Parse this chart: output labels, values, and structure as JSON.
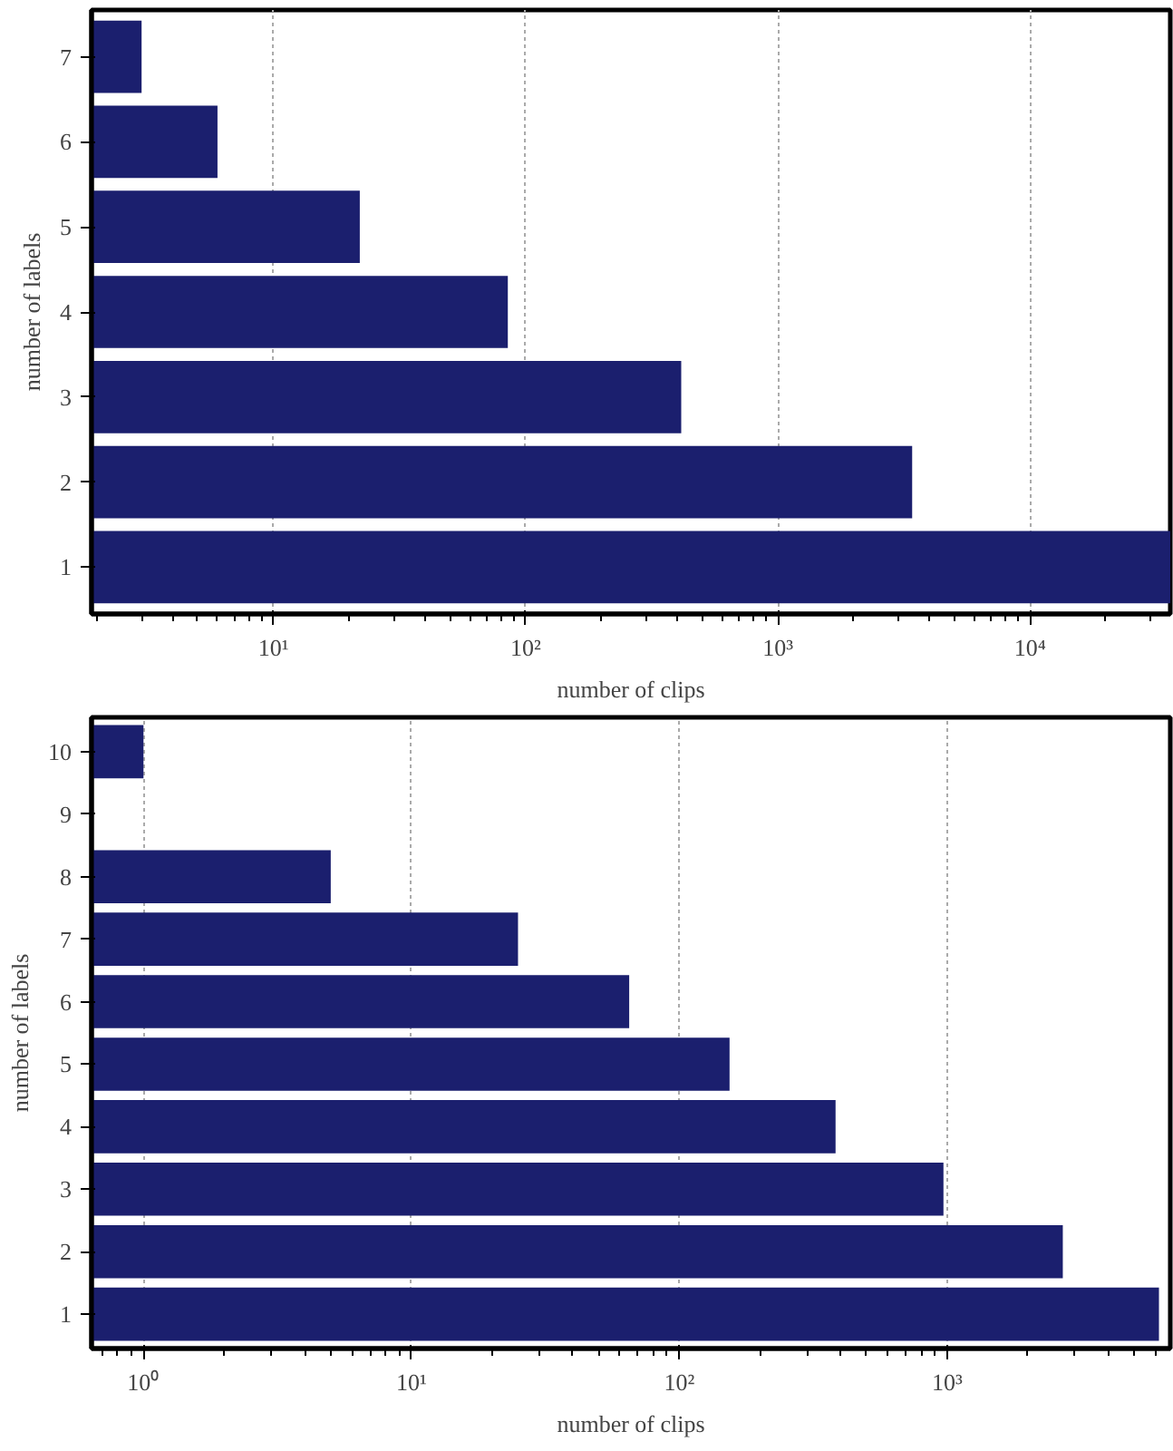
{
  "chart_data": [
    {
      "type": "bar",
      "orientation": "horizontal",
      "xlabel": "number of clips",
      "ylabel": "number of labels",
      "log": "x",
      "grid": "x",
      "categories": [
        "7",
        "6",
        "5",
        "4",
        "3",
        "2",
        "1"
      ],
      "values": [
        3,
        6,
        22,
        85,
        414,
        3410,
        36000
      ],
      "color": "#1b1f6e",
      "xlim": [
        1.9,
        36000
      ],
      "xticks": [
        {
          "value": 10,
          "label": "10¹"
        },
        {
          "value": 100,
          "label": "10²"
        },
        {
          "value": 1000,
          "label": "10³"
        },
        {
          "value": 10000,
          "label": "10⁴"
        }
      ]
    },
    {
      "type": "bar",
      "orientation": "horizontal",
      "xlabel": "number of clips",
      "ylabel": "number of labels",
      "log": "x",
      "grid": "x",
      "categories": [
        "10",
        "9",
        "8",
        "7",
        "6",
        "5",
        "4",
        "3",
        "2",
        "1"
      ],
      "values": [
        1,
        null,
        5,
        25,
        65,
        154,
        383,
        968,
        2700,
        6170
      ],
      "color": "#1b1f6e",
      "xlim": [
        0.64,
        6800
      ],
      "xticks": [
        {
          "value": 1,
          "label": "10⁰"
        },
        {
          "value": 10,
          "label": "10¹"
        },
        {
          "value": 100,
          "label": "10²"
        },
        {
          "value": 1000,
          "label": "10³"
        }
      ]
    }
  ]
}
